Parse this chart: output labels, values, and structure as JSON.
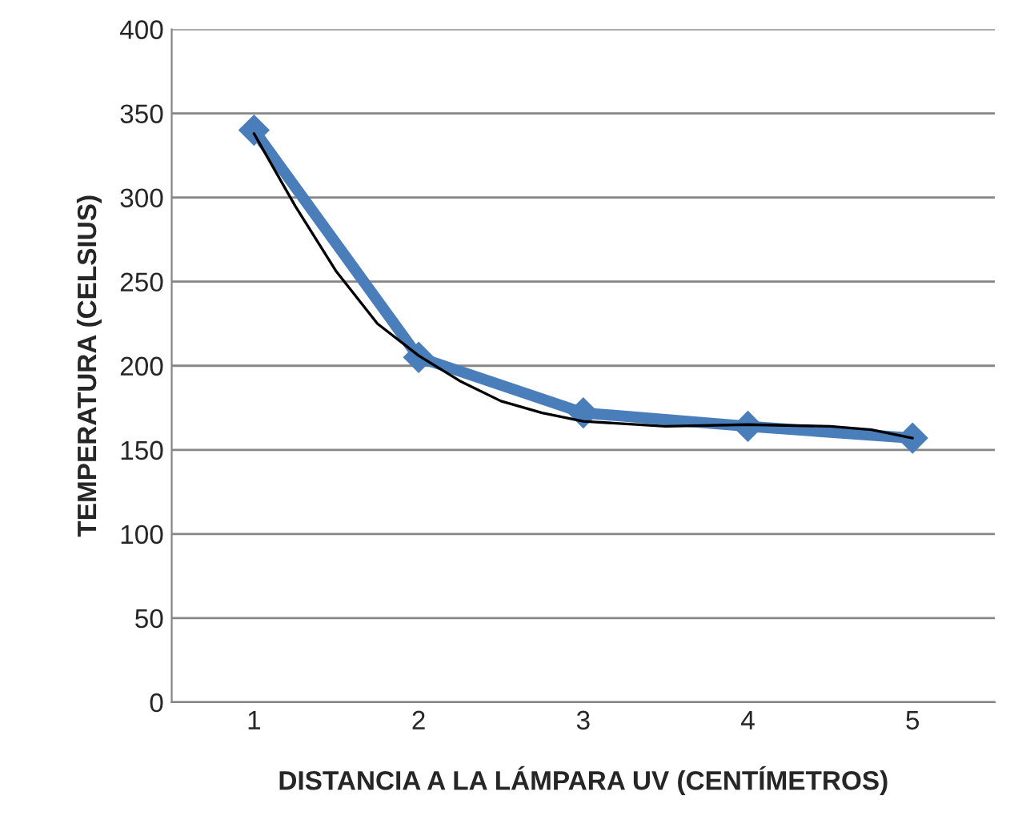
{
  "chart_data": {
    "type": "line",
    "xlabel": "DISTANCIA A LA LÁMPARA UV (CENTÍMETROS)",
    "ylabel": "TEMPERATURA (CELSIUS)",
    "xlim": [
      0.5,
      5.5
    ],
    "xticks": [
      1,
      2,
      3,
      4,
      5
    ],
    "ylim": [
      0,
      400
    ],
    "yticks": [
      0,
      50,
      100,
      150,
      200,
      250,
      300,
      350,
      400
    ],
    "grid": "y",
    "legend": false,
    "series": [
      {
        "color": "#4a7ebb",
        "marker": "diamond",
        "x": [
          1,
          2,
          3,
          4,
          5
        ],
        "values": [
          340,
          205,
          172,
          164,
          157
        ]
      },
      {
        "color": "#000000",
        "marker": "none",
        "x": [
          1,
          1.25,
          1.5,
          1.75,
          2,
          2.25,
          2.5,
          2.75,
          3,
          3.5,
          4,
          4.5,
          4.75,
          5
        ],
        "values": [
          338,
          295,
          256,
          225,
          206,
          191,
          179,
          172,
          167,
          164,
          165,
          164,
          162,
          157
        ]
      }
    ]
  }
}
